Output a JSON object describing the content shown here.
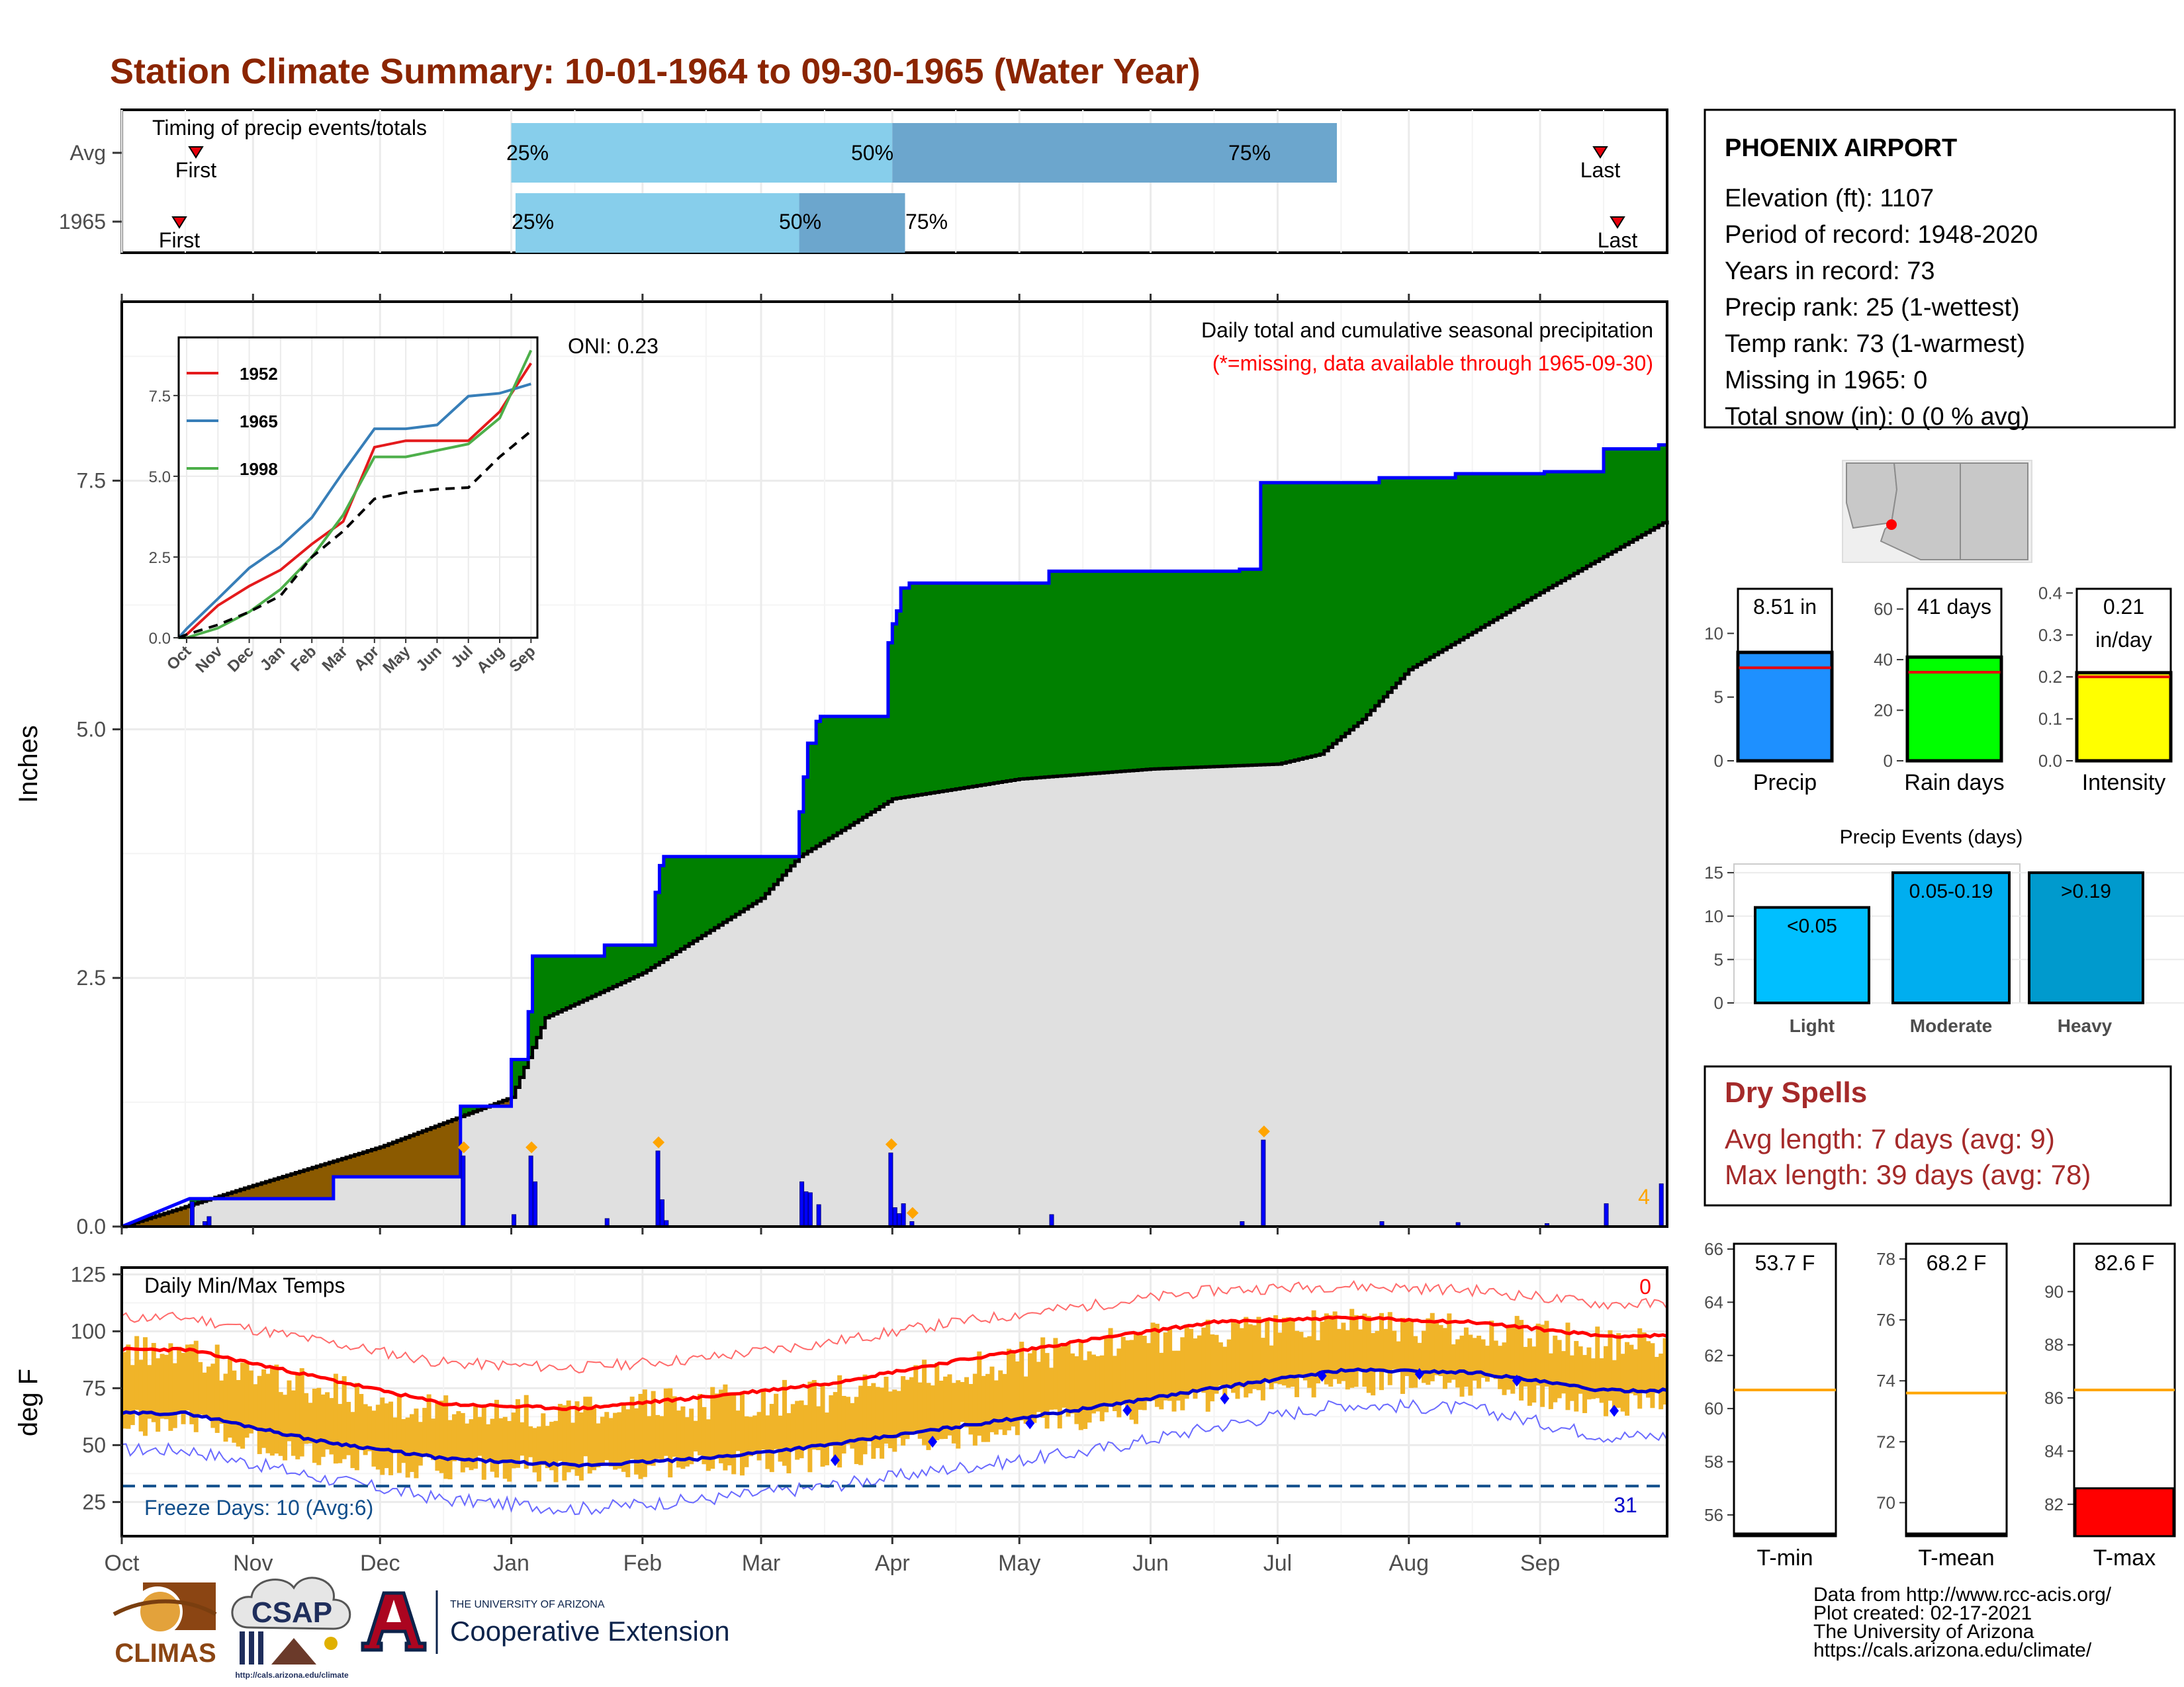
{
  "title": "Station Climate Summary: 10-01-1964 to 09-30-1965 (Water Year)",
  "colors": {
    "title": "#8B2500",
    "precip_fill": "#008000",
    "deficit_fill": "#8B5A00",
    "avg_fill": "#E0E0E0",
    "obs_line": "#0000FF",
    "temp_bar": "#F0B429",
    "max_line": "#FF0000",
    "min_line": "#0000CC",
    "dry_spells": "#A52A2A",
    "missing_note": "#FF0000",
    "light_q": "#87CEEB",
    "dark_q": "#6CA6CD"
  },
  "timing": {
    "label": "Timing of precip events/totals",
    "rows": [
      {
        "name": "Avg",
        "first_label": "First",
        "last_label": "Last",
        "q25": "25%",
        "q50": "50%",
        "q75": "75%"
      },
      {
        "name": "1965",
        "first_label": "First",
        "last_label": "Last",
        "q25": "25%",
        "q50": "50%",
        "q75": "75%"
      }
    ]
  },
  "precip": {
    "ylabel": "Inches",
    "yticks": [
      "0.0",
      "2.5",
      "5.0",
      "7.5"
    ],
    "oni": "ONI: 0.23",
    "note1": "Daily total and cumulative seasonal precipitation",
    "note2": "(*=missing, data available through 1965-09-30)",
    "count_label": "4"
  },
  "inset": {
    "yticks": [
      "0.0",
      "2.5",
      "5.0",
      "7.5"
    ],
    "months": [
      "Oct",
      "Nov",
      "Dec",
      "Jan",
      "Feb",
      "Mar",
      "Apr",
      "May",
      "Jun",
      "Jul",
      "Aug",
      "Sep"
    ],
    "legend": [
      {
        "name": "1952",
        "color": "#E41A1C"
      },
      {
        "name": "1965",
        "color": "#377EB8"
      },
      {
        "name": "1998",
        "color": "#4DAF4A"
      }
    ]
  },
  "temp": {
    "ylabel": "deg F",
    "title": "Daily Min/Max Temps",
    "yticks": [
      "25",
      "50",
      "75",
      "100",
      "125"
    ],
    "freeze_label": "Freeze Days: 10 (Avg:6)",
    "hot_count": "0",
    "freeze_count": "31",
    "months": [
      "Oct",
      "Nov",
      "Dec",
      "Jan",
      "Feb",
      "Mar",
      "Apr",
      "May",
      "Jun",
      "Jul",
      "Aug",
      "Sep"
    ]
  },
  "station": {
    "name": "PHOENIX AIRPORT",
    "lines": [
      "Elevation (ft): 1107",
      "Period of record: 1948-2020",
      "Years in record: 73",
      "Precip rank: 25 (1-wettest)",
      "Temp rank: 73 (1-warmest)",
      "Missing in 1965: 0",
      "Total snow (in): 0 (0 % avg)"
    ]
  },
  "summary_bars": [
    {
      "label": "Precip",
      "value_text": "8.51 in",
      "yticks": [
        "0",
        "5",
        "10"
      ],
      "color": "#1E90FF"
    },
    {
      "label": "Rain days",
      "value_text": "41 days",
      "yticks": [
        "0",
        "20",
        "40",
        "60"
      ],
      "color": "#00FF00"
    },
    {
      "label": "Intensity",
      "value_text": "0.21",
      "value_text2": "in/day",
      "yticks": [
        "0.0",
        "0.1",
        "0.2",
        "0.3",
        "0.4"
      ],
      "color": "#FFFF00"
    }
  ],
  "events": {
    "title": "Precip Events (days)",
    "yticks": [
      "0",
      "5",
      "10",
      "15"
    ],
    "bars": [
      {
        "category": "Light",
        "label": "<0.05",
        "color": "#00BFFF"
      },
      {
        "category": "Moderate",
        "label": "0.05-0.19",
        "color": "#00AEEF"
      },
      {
        "category": "Heavy",
        "label": ">0.19",
        "color": "#009ACD"
      }
    ]
  },
  "dry_spells": {
    "title": "Dry Spells",
    "avg": "Avg length: 7 days (avg: 9)",
    "max": "Max length: 39 days (avg: 78)"
  },
  "temp_bars": [
    {
      "label": "T-min",
      "value_text": "53.7 F",
      "yticks": [
        "56",
        "58",
        "60",
        "62",
        "64",
        "66"
      ]
    },
    {
      "label": "T-mean",
      "value_text": "68.2 F",
      "yticks": [
        "70",
        "72",
        "74",
        "76",
        "78"
      ]
    },
    {
      "label": "T-max",
      "value_text": "82.6 F",
      "yticks": [
        "82",
        "84",
        "86",
        "88",
        "90"
      ]
    }
  ],
  "footer": {
    "lines": [
      "Data from http://www.rcc-acis.org/",
      "Plot created: 02-17-2021",
      "The University of Arizona",
      "https://cals.arizona.edu/climate/"
    ],
    "climas": "CLIMAS",
    "csap": "CSAP",
    "csap_url": "http://cals.arizona.edu/climate",
    "ua_small": "THE UNIVERSITY OF ARIZONA",
    "ua_large": "Cooperative Extension"
  },
  "chart_data": [
    {
      "type": "bar",
      "title": "Timing of precip events/totals",
      "categories": [
        "Avg",
        "1965"
      ],
      "series": [
        {
          "name": "Avg",
          "values": {
            "first": "Oct 19",
            "q25": "Jan 1",
            "q50": "Apr 1",
            "q75": "Jul 15",
            "last": "Sep 14"
          }
        },
        {
          "name": "1965",
          "values": {
            "first": "Oct 14",
            "q25": "Jan 2",
            "q50": "Mar 10",
            "q75": "Apr 4",
            "last": "Sep 18"
          }
        }
      ]
    },
    {
      "type": "area",
      "title": "Daily total and cumulative seasonal precipitation",
      "ylabel": "Inches",
      "ylim": [
        0,
        9.3
      ],
      "series": [
        {
          "name": "1965 cumulative",
          "points": [
            [
              0,
              0
            ],
            [
              16,
              0.28
            ],
            [
              50,
              0.28
            ],
            [
              50,
              0.5
            ],
            [
              80,
              0.5
            ],
            [
              80,
              1.21
            ],
            [
              92,
              1.21
            ],
            [
              92,
              1.68
            ],
            [
              96,
              1.68
            ],
            [
              96,
              2.16
            ],
            [
              97,
              2.16
            ],
            [
              97,
              2.72
            ],
            [
              114,
              2.72
            ],
            [
              114,
              2.83
            ],
            [
              126,
              2.83
            ],
            [
              126,
              3.36
            ],
            [
              127,
              3.36
            ],
            [
              127,
              3.63
            ],
            [
              128,
              3.63
            ],
            [
              128,
              3.72
            ],
            [
              160,
              3.72
            ],
            [
              160,
              4.17
            ],
            [
              161,
              4.17
            ],
            [
              161,
              4.52
            ],
            [
              162,
              4.52
            ],
            [
              162,
              4.86
            ],
            [
              164,
              4.86
            ],
            [
              164,
              5.08
            ],
            [
              165,
              5.08
            ],
            [
              165,
              5.13
            ],
            [
              181,
              5.13
            ],
            [
              181,
              5.87
            ],
            [
              182,
              5.87
            ],
            [
              182,
              6.06
            ],
            [
              183,
              6.06
            ],
            [
              183,
              6.19
            ],
            [
              184,
              6.19
            ],
            [
              184,
              6.42
            ],
            [
              186,
              6.42
            ],
            [
              186,
              6.47
            ],
            [
              219,
              6.47
            ],
            [
              219,
              6.59
            ],
            [
              264,
              6.59
            ],
            [
              264,
              6.61
            ],
            [
              269,
              6.61
            ],
            [
              269,
              7.48
            ],
            [
              297,
              7.48
            ],
            [
              297,
              7.53
            ],
            [
              315,
              7.53
            ],
            [
              315,
              7.57
            ],
            [
              336,
              7.57
            ],
            [
              336,
              7.59
            ],
            [
              350,
              7.59
            ],
            [
              350,
              7.82
            ],
            [
              363,
              7.82
            ],
            [
              363,
              7.86
            ],
            [
              365,
              7.86
            ]
          ]
        },
        {
          "name": "Average cumulative",
          "points": [
            [
              0,
              0
            ],
            [
              30,
              0.4
            ],
            [
              61,
              0.8
            ],
            [
              92,
              1.3
            ],
            [
              100,
              2.1
            ],
            [
              123,
              2.55
            ],
            [
              151,
              3.3
            ],
            [
              160,
              3.72
            ],
            [
              182,
              4.3
            ],
            [
              212,
              4.5
            ],
            [
              243,
              4.6
            ],
            [
              273,
              4.65
            ],
            [
              283,
              4.75
            ],
            [
              293,
              5.1
            ],
            [
              304,
              5.6
            ],
            [
              334,
              6.35
            ],
            [
              365,
              7.1
            ]
          ]
        }
      ],
      "daily_totals": [
        [
          16,
          0.25
        ],
        [
          19,
          0.05
        ],
        [
          20,
          0.1
        ],
        [
          80,
          0.71
        ],
        [
          92,
          0.12
        ],
        [
          96,
          0.71
        ],
        [
          97,
          0.45
        ],
        [
          114,
          0.08
        ],
        [
          126,
          0.76
        ],
        [
          127,
          0.27
        ],
        [
          128,
          0.06
        ],
        [
          160,
          0.45
        ],
        [
          161,
          0.35
        ],
        [
          162,
          0.34
        ],
        [
          164,
          0.22
        ],
        [
          181,
          0.74
        ],
        [
          182,
          0.19
        ],
        [
          183,
          0.13
        ],
        [
          184,
          0.23
        ],
        [
          186,
          0.05
        ],
        [
          219,
          0.12
        ],
        [
          264,
          0.05
        ],
        [
          269,
          0.87
        ],
        [
          297,
          0.05
        ],
        [
          315,
          0.04
        ],
        [
          336,
          0.03
        ],
        [
          350,
          0.23
        ],
        [
          363,
          0.43
        ]
      ]
    },
    {
      "type": "line",
      "title": "",
      "categories": [
        "Oct",
        "Nov",
        "Dec",
        "Jan",
        "Feb",
        "Mar",
        "Apr",
        "May",
        "Jun",
        "Jul",
        "Aug",
        "Sep"
      ],
      "ylim": [
        0,
        9.3
      ],
      "series": [
        {
          "name": "1952",
          "values": [
            0.1,
            1.0,
            1.6,
            2.1,
            2.9,
            3.6,
            5.9,
            6.1,
            6.1,
            6.1,
            7.0,
            8.5
          ]
        },
        {
          "name": "1965",
          "values": [
            0.28,
            1.21,
            2.16,
            2.83,
            3.72,
            5.13,
            6.47,
            6.47,
            6.59,
            7.48,
            7.57,
            7.86
          ]
        },
        {
          "name": "1998",
          "values": [
            0.0,
            0.3,
            0.8,
            1.5,
            2.5,
            3.8,
            5.6,
            5.6,
            5.8,
            6.0,
            6.8,
            8.9
          ]
        },
        {
          "name": "Average",
          "values": [
            0.1,
            0.4,
            0.8,
            1.3,
            2.5,
            3.3,
            4.3,
            4.5,
            4.6,
            4.65,
            5.6,
            6.4
          ]
        }
      ]
    },
    {
      "type": "line",
      "title": "Daily Min/Max Temps",
      "ylabel": "deg F",
      "ylim": [
        10,
        128
      ],
      "series": [
        {
          "name": "Average max",
          "values": [
            92,
            80,
            68,
            66,
            71,
            77,
            87,
            96,
            104,
            106,
            104,
            98
          ]
        },
        {
          "name": "Average min",
          "values": [
            64,
            52,
            44,
            41,
            44,
            50,
            58,
            66,
            75,
            83,
            82,
            74
          ]
        },
        {
          "name": "Record high",
          "values": [
            106,
            96,
            86,
            84,
            88,
            95,
            104,
            111,
            118,
            120,
            118,
            112
          ]
        },
        {
          "name": "Record low",
          "values": [
            48,
            36,
            26,
            22,
            26,
            32,
            40,
            47,
            58,
            68,
            66,
            54
          ]
        },
        {
          "name": "1965 max",
          "values": [
            90,
            75,
            66,
            65,
            68,
            72,
            82,
            93,
            100,
            102,
            101,
            95
          ]
        },
        {
          "name": "1965 min",
          "values": [
            60,
            45,
            40,
            39,
            42,
            44,
            54,
            62,
            70,
            78,
            77,
            68
          ]
        }
      ],
      "freeze_line": 32
    },
    {
      "type": "bar",
      "categories": [
        "Precip",
        "Rain days",
        "Intensity"
      ],
      "values": [
        8.51,
        41,
        0.21
      ],
      "averages": [
        7.3,
        35,
        0.2
      ]
    },
    {
      "type": "bar",
      "title": "Precip Events (days)",
      "categories": [
        "Light",
        "Moderate",
        "Heavy"
      ],
      "values": [
        11,
        15,
        15
      ],
      "ylim": [
        0,
        16
      ]
    },
    {
      "type": "bar",
      "categories": [
        "T-min",
        "T-mean",
        "T-max"
      ],
      "values": [
        53.7,
        68.2,
        82.6
      ],
      "averages": [
        60.7,
        73.6,
        86.3
      ]
    }
  ]
}
